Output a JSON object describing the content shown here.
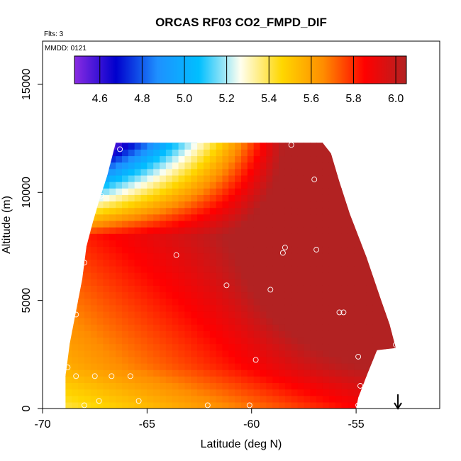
{
  "chart_data": {
    "type": "heatmap",
    "title": "ORCAS RF03 CO2_FMPD_DIF",
    "subtitle_flights": "Flts: 3",
    "subtitle_date": "MMDD: 0121",
    "xlabel": "Latitude (deg N)",
    "ylabel": "Altitude (m)",
    "xlim": [
      -70,
      -51
    ],
    "ylim": [
      0,
      17000
    ],
    "x_ticks": [
      -70,
      -65,
      -60,
      -55
    ],
    "x_tick_labels": [
      "-70",
      "-65",
      "-60",
      "-55"
    ],
    "y_ticks": [
      0,
      5000,
      10000,
      15000
    ],
    "y_tick_labels": [
      "0",
      "5000",
      "10000",
      "15000"
    ],
    "colorbar": {
      "min": 4.48,
      "max": 6.05,
      "ticks": [
        4.6,
        4.8,
        5.0,
        5.2,
        5.4,
        5.6,
        5.8,
        6.0
      ],
      "tick_labels": [
        "4.6",
        "4.8",
        "5.0",
        "5.2",
        "5.4",
        "5.6",
        "5.8",
        "6.0"
      ],
      "colors": [
        "#8a2be2",
        "#0000cd",
        "#1e90ff",
        "#00bfff",
        "#fffff0",
        "#ffd700",
        "#ff8c00",
        "#ff0000",
        "#b22222"
      ]
    },
    "grid": false,
    "field_outline": [
      [
        -68.9,
        0
      ],
      [
        -68.9,
        1500
      ],
      [
        -68.7,
        3000
      ],
      [
        -68.4,
        4500
      ],
      [
        -68.1,
        6000
      ],
      [
        -67.9,
        7500
      ],
      [
        -67.6,
        8600
      ],
      [
        -67.3,
        9600
      ],
      [
        -66.9,
        10800
      ],
      [
        -66.5,
        12300
      ],
      [
        -56.6,
        12300
      ],
      [
        -56.2,
        11800
      ],
      [
        -55.8,
        10500
      ],
      [
        -55.3,
        9000
      ],
      [
        -54.5,
        7000
      ],
      [
        -53.8,
        5000
      ],
      [
        -53.4,
        3900
      ],
      [
        -53.1,
        2800
      ],
      [
        -54.0,
        2700
      ],
      [
        -54.5,
        1500
      ],
      [
        -54.9,
        500
      ],
      [
        -55.0,
        0
      ]
    ],
    "observation_points": [
      {
        "x": -66.3,
        "y": 12000
      },
      {
        "x": -58.1,
        "y": 12200
      },
      {
        "x": -56.6,
        "y": 12500
      },
      {
        "x": -57.0,
        "y": 10600
      },
      {
        "x": -67.2,
        "y": 9850
      },
      {
        "x": -63.6,
        "y": 7100
      },
      {
        "x": -58.4,
        "y": 7450
      },
      {
        "x": -58.5,
        "y": 7200
      },
      {
        "x": -56.9,
        "y": 7350
      },
      {
        "x": -68.0,
        "y": 6750
      },
      {
        "x": -61.2,
        "y": 5700
      },
      {
        "x": -59.1,
        "y": 5500
      },
      {
        "x": -55.8,
        "y": 4450
      },
      {
        "x": -55.6,
        "y": 4450
      },
      {
        "x": -68.4,
        "y": 4350
      },
      {
        "x": -53.1,
        "y": 2950
      },
      {
        "x": -54.9,
        "y": 2400
      },
      {
        "x": -59.8,
        "y": 2250
      },
      {
        "x": -68.8,
        "y": 1900
      },
      {
        "x": -68.4,
        "y": 1500
      },
      {
        "x": -67.5,
        "y": 1500
      },
      {
        "x": -66.7,
        "y": 1500
      },
      {
        "x": -65.8,
        "y": 1500
      },
      {
        "x": -54.8,
        "y": 1050
      },
      {
        "x": -67.3,
        "y": 350
      },
      {
        "x": -65.4,
        "y": 350
      },
      {
        "x": -68.0,
        "y": 150
      },
      {
        "x": -62.1,
        "y": 150
      },
      {
        "x": -60.1,
        "y": 150
      },
      {
        "x": -54.9,
        "y": 150
      }
    ],
    "arrow_marker": {
      "x": -53.0,
      "label": "↓"
    }
  }
}
